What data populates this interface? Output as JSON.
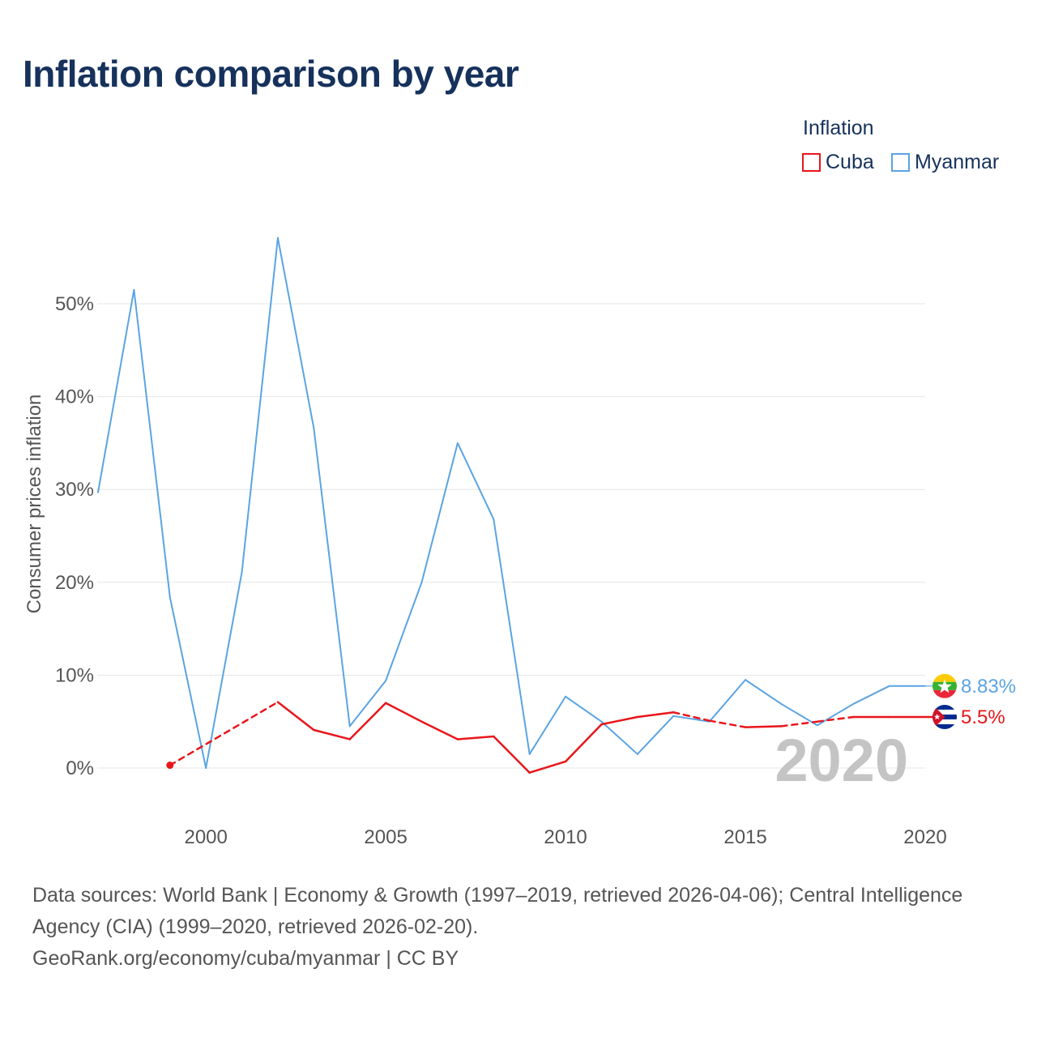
{
  "title": "Inflation comparison by year",
  "legend": {
    "title": "Inflation",
    "items": [
      {
        "label": "Cuba",
        "color": "#e8161b"
      },
      {
        "label": "Myanmar",
        "color": "#5aa4e3"
      }
    ]
  },
  "footer": {
    "sources": "Data sources: World Bank | Economy & Growth (1997–2019, retrieved 2026-04-06); Central Intelligence Agency (CIA) (1999–2020, retrieved 2026-02-20).",
    "credit": "GeoRank.org/economy/cuba/myanmar | CC BY"
  },
  "chart_data": {
    "type": "line",
    "title": "Inflation comparison by year",
    "xlabel": "",
    "ylabel": "Consumer prices inflation",
    "xlim": [
      1997,
      2020
    ],
    "ylim": [
      -5,
      60
    ],
    "x_ticks": [
      2000,
      2005,
      2010,
      2015,
      2020
    ],
    "x_tick_labels": [
      "2000",
      "2005",
      "2010",
      "2015",
      "2020"
    ],
    "y_ticks": [
      0,
      10,
      20,
      30,
      40,
      50
    ],
    "y_tick_labels": [
      "0%",
      "10%",
      "20%",
      "30%",
      "40%",
      "50%"
    ],
    "grid": true,
    "year_watermark": "2020",
    "series": [
      {
        "name": "Myanmar",
        "color": "#5aa4e3",
        "end_label": "8.83%",
        "flag": "myanmar-flag",
        "points": [
          [
            1997,
            29.7
          ],
          [
            1998,
            51.5
          ],
          [
            1999,
            18.4
          ],
          [
            2000,
            0.0
          ],
          [
            2001,
            21.1
          ],
          [
            2002,
            57.1
          ],
          [
            2003,
            36.6
          ],
          [
            2004,
            4.5
          ],
          [
            2005,
            9.4
          ],
          [
            2006,
            20.0
          ],
          [
            2007,
            35.0
          ],
          [
            2008,
            26.8
          ],
          [
            2009,
            1.5
          ],
          [
            2010,
            7.7
          ],
          [
            2011,
            5.0
          ],
          [
            2012,
            1.5
          ],
          [
            2013,
            5.6
          ],
          [
            2014,
            5.0
          ],
          [
            2015,
            9.5
          ],
          [
            2016,
            6.9
          ],
          [
            2017,
            4.6
          ],
          [
            2018,
            6.9
          ],
          [
            2019,
            8.83
          ],
          [
            2020,
            8.83
          ]
        ]
      },
      {
        "name": "Cuba",
        "color": "#e8161b",
        "end_label": "5.5%",
        "flag": "cuba-flag",
        "points": [
          [
            1999,
            0.3
          ],
          [
            2002,
            7.1
          ],
          [
            2003,
            4.1
          ],
          [
            2004,
            3.1
          ],
          [
            2005,
            7.0
          ],
          [
            2006,
            5.0
          ],
          [
            2007,
            3.1
          ],
          [
            2008,
            3.4
          ],
          [
            2009,
            -0.5
          ],
          [
            2010,
            0.7
          ],
          [
            2011,
            4.7
          ],
          [
            2012,
            5.5
          ],
          [
            2013,
            6.0
          ],
          [
            2014,
            5.1
          ],
          [
            2015,
            4.4
          ],
          [
            2016,
            4.5
          ],
          [
            2017,
            5.0
          ],
          [
            2018,
            5.5
          ],
          [
            2019,
            5.5
          ],
          [
            2020,
            5.5
          ]
        ],
        "dashed_segments": [
          [
            1999,
            2002
          ],
          [
            2013,
            2015
          ],
          [
            2016,
            2018
          ]
        ]
      }
    ]
  }
}
